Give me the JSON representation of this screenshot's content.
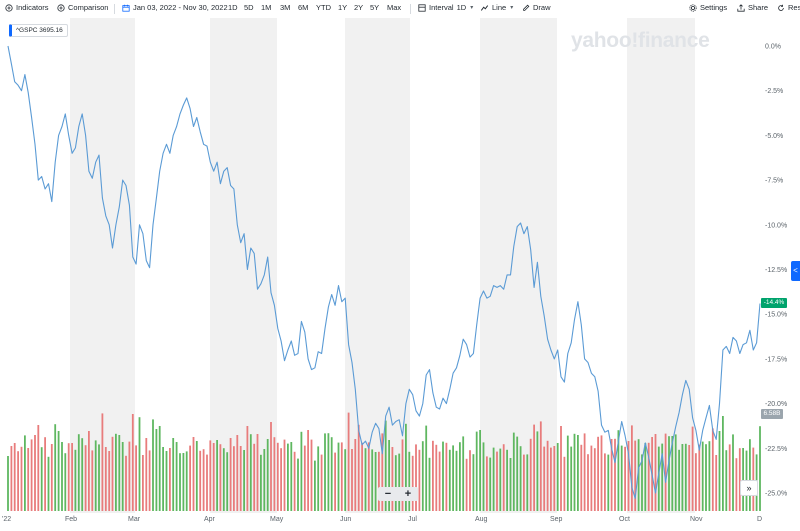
{
  "toolbar": {
    "indicators": "Indicators",
    "comparison": "Comparison",
    "date_range": "Jan 03, 2022 - Nov 30, 2022",
    "ranges": [
      "1D",
      "5D",
      "1M",
      "3M",
      "6M",
      "YTD",
      "1Y",
      "2Y",
      "5Y",
      "Max"
    ],
    "interval": "Interval",
    "interval_value": "1D",
    "line": "Line",
    "draw": "Draw",
    "settings": "Settings",
    "share": "Share",
    "reset": "Res"
  },
  "logo": "yahoo!finance",
  "series_chip": "^GSPC 3695.16",
  "price_tag": "-14.4%",
  "volume_tag": "6.58B",
  "side_tab": "<",
  "zoom": {
    "minus": "−",
    "plus": "+"
  },
  "scroll_button": "»",
  "colors": {
    "line": "#5b9bd5",
    "up": "#5fb760",
    "down": "#e87c7c",
    "price_tag": "#00a36c"
  },
  "chart_data": {
    "type": "line",
    "series": [
      {
        "values": [
          0,
          -1,
          -2,
          -2.2,
          -2.5,
          -1.6,
          -2.6,
          -4,
          -5.5,
          -7.5,
          -7.3,
          -8,
          -7.7,
          -8.7,
          -6.5,
          -5,
          -4.5,
          -3.8,
          -5,
          -6,
          -5.7,
          -4.5,
          -3.8,
          -5,
          -7,
          -7.4,
          -6.5,
          -6.1,
          -8.5,
          -9.5,
          -10,
          -11.3,
          -10,
          -9,
          -7.5,
          -7.8,
          -8.9,
          -11.8,
          -12.2,
          -10,
          -10.5,
          -12,
          -12.4,
          -10,
          -8.5,
          -7,
          -6,
          -5.5,
          -6,
          -5,
          -4.5,
          -3.8,
          -3.3,
          -2.9,
          -3.5,
          -4.5,
          -4,
          -4.8,
          -5.5,
          -5.6,
          -6.5,
          -7,
          -6.5,
          -7.7,
          -7,
          -6.8,
          -7.8,
          -8,
          -10,
          -11,
          -10.5,
          -12.5,
          -11.3,
          -11.6,
          -13.6,
          -13.3,
          -12.8,
          -11.8,
          -13.8,
          -14.5,
          -15.8,
          -16.5,
          -17.6,
          -17,
          -16.5,
          -17.3,
          -17.2,
          -15.4,
          -16,
          -17.5,
          -18.1,
          -18,
          -17.1,
          -17.2,
          -15.8,
          -14.6,
          -13.9,
          -14.5,
          -13.4,
          -14.3,
          -14.1,
          -16.7,
          -17.7,
          -19.2,
          -21.5,
          -22.3,
          -22.1,
          -22.5,
          -21.6,
          -21.1,
          -21.4,
          -22.8,
          -20.7,
          -20.2,
          -21.2,
          -21,
          -20.9,
          -21.8,
          -20,
          -19.2,
          -19.5,
          -20.4,
          -20.7,
          -20,
          -18.4,
          -18.1,
          -19.4,
          -20.2,
          -20.3,
          -19.7,
          -20,
          -19.2,
          -18.3,
          -18,
          -17.3,
          -16.4,
          -16.7,
          -17.4,
          -17.2,
          -15.6,
          -14.1,
          -13.7,
          -14.1,
          -14,
          -13.4,
          -13.5,
          -13.4,
          -13.6,
          -12.8,
          -12.8,
          -11.2,
          -10.1,
          -9.9,
          -10.5,
          -10.1,
          -11.4,
          -13.5,
          -12.1,
          -14,
          -15.1,
          -16.4,
          -17,
          -17.5,
          -17,
          -18.5,
          -18.8,
          -17.2,
          -16.6,
          -15.3,
          -14.3,
          -15.6,
          -17.5,
          -17.7,
          -18.3,
          -18.5,
          -19.3,
          -21.2,
          -21.6,
          -21.5,
          -22.5,
          -23.3,
          -22.1,
          -21,
          -21.8,
          -22.8,
          -24.7,
          -25.3,
          -23.6,
          -23.2,
          -22.2,
          -23,
          -24,
          -25,
          -23.9,
          -22.8,
          -24.4,
          -23.2,
          -22.2,
          -21.3,
          -20.5,
          -19.5,
          -18.7,
          -19.2,
          -20.8,
          -21.5,
          -22.6,
          -21.5,
          -20.8,
          -20.1,
          -21.5,
          -22,
          -20,
          -17,
          -16.8,
          -17.2,
          -16.3,
          -16.5,
          -17.2,
          -16.7,
          -16.6,
          -15.9,
          -17,
          -16.6,
          -14.4
        ]
      }
    ],
    "x_labels": [
      "'22",
      "Feb",
      "Mar",
      "Apr",
      "May",
      "Jun",
      "Jul",
      "Aug",
      "Sep",
      "Oct",
      "Nov",
      "D"
    ],
    "y_ticks": [
      "0.0%",
      "-2.5%",
      "-5.0%",
      "-7.5%",
      "-10.0%",
      "-12.5%",
      "-15.0%",
      "-17.5%",
      "-20.0%",
      "-22.5%",
      "-25.0%"
    ],
    "ylim": [
      -25.5,
      0.8
    ],
    "volume_series_note": "",
    "grid": false
  }
}
